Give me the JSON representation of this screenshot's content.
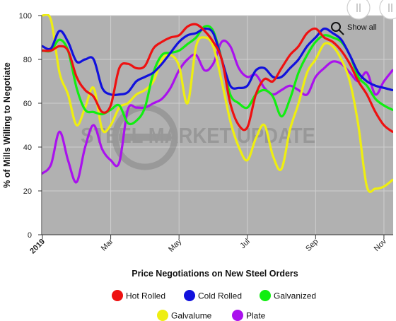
{
  "chart_data": {
    "type": "line",
    "title": "",
    "xlabel": "Price Negotiations on New Steel Orders",
    "ylabel": "% of Mills Willing to Negotiate",
    "ylim": [
      0,
      100
    ],
    "yticks": [
      0,
      20,
      40,
      60,
      80,
      100
    ],
    "x": [
      0,
      0.5,
      1,
      1.5,
      2,
      2.5,
      3,
      3.5,
      4,
      4.5,
      5,
      5.5,
      6,
      6.5,
      7,
      7.5,
      8,
      8.5,
      9,
      9.5,
      10,
      10.5,
      11,
      11.5,
      12,
      12.5,
      13,
      13.5,
      14,
      14.5,
      15,
      15.5,
      16,
      16.5,
      17,
      17.5,
      18,
      18.5,
      19,
      19.5,
      20,
      20.5
    ],
    "xticks": [
      {
        "label": "2019",
        "bold": true,
        "at": 0
      },
      {
        "label": "Mar",
        "bold": false,
        "at": 4
      },
      {
        "label": "May",
        "bold": false,
        "at": 8
      },
      {
        "label": "Jul",
        "bold": false,
        "at": 12
      },
      {
        "label": "Sep",
        "bold": false,
        "at": 16
      },
      {
        "label": "Nov",
        "bold": false,
        "at": 20
      }
    ],
    "grid": true,
    "legend_position": "bottom",
    "series": [
      {
        "name": "Hot Rolled",
        "color": "#ee1111",
        "values": [
          84,
          84,
          86,
          84,
          72,
          66,
          63,
          56,
          59,
          76,
          78,
          76,
          77,
          85,
          88,
          90,
          91,
          95,
          96,
          93,
          88,
          80,
          60,
          50,
          49,
          64,
          71,
          70,
          76,
          82,
          86,
          92,
          94,
          90,
          88,
          84,
          78,
          70,
          64,
          56,
          50,
          47
        ]
      },
      {
        "name": "Cold Rolled",
        "color": "#1111dd",
        "values": [
          86,
          85,
          93,
          88,
          79,
          80,
          80,
          67,
          64,
          64,
          65,
          70,
          72,
          74,
          78,
          83,
          88,
          91,
          92,
          94,
          92,
          80,
          68,
          67,
          68,
          75,
          76,
          72,
          72,
          76,
          80,
          86,
          90,
          94,
          92,
          89,
          82,
          74,
          70,
          68,
          67,
          66
        ]
      },
      {
        "name": "Galvanized",
        "color": "#11ee11",
        "values": [
          84,
          84,
          89,
          84,
          67,
          57,
          56,
          55,
          57,
          59,
          51,
          52,
          58,
          74,
          82,
          83,
          84,
          87,
          90,
          95,
          93,
          80,
          64,
          60,
          58,
          64,
          66,
          63,
          54,
          62,
          74,
          82,
          88,
          91,
          90,
          88,
          82,
          72,
          68,
          62,
          59,
          57
        ]
      },
      {
        "name": "Galvalume",
        "color": "#eeee11",
        "values": [
          100,
          98,
          74,
          64,
          50,
          58,
          67,
          48,
          50,
          58,
          60,
          64,
          66,
          70,
          80,
          82,
          77,
          60,
          86,
          90,
          86,
          70,
          52,
          40,
          34,
          44,
          50,
          36,
          30,
          48,
          60,
          74,
          80,
          87,
          86,
          80,
          70,
          50,
          22,
          21,
          22,
          25
        ]
      },
      {
        "name": "Plate",
        "color": "#aa11ee",
        "values": [
          28,
          32,
          47,
          34,
          24,
          40,
          50,
          39,
          34,
          33,
          57,
          58,
          58,
          60,
          62,
          67,
          75,
          80,
          82,
          75,
          78,
          88,
          86,
          76,
          72,
          73,
          67,
          64,
          66,
          68,
          66,
          64,
          72,
          76,
          79,
          78,
          74,
          70,
          74,
          64,
          70,
          75
        ]
      }
    ],
    "watermark": "STEEL MARKET UPDATE",
    "controls": {
      "show_all_label": "Show all"
    }
  }
}
